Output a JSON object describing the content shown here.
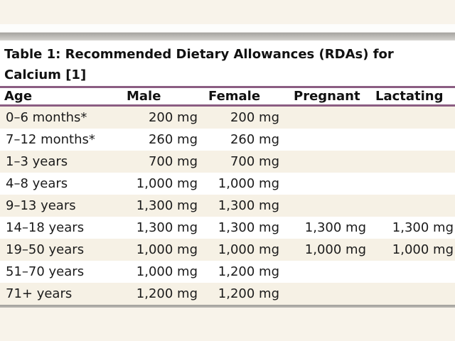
{
  "title": "Table 1: Recommended Dietary Allowances (RDAs) for Calcium [1]",
  "colors": {
    "accent_rule": "#8b5d82",
    "stripe_bg": "#f6f1e5",
    "page_margin_bg": "#f8f3ea",
    "divider_gray": "#a5a3a0"
  },
  "table": {
    "columns": {
      "age": "Age",
      "male": "Male",
      "female": "Female",
      "pregnant": "Pregnant",
      "lactating": "Lactating"
    },
    "rows": [
      {
        "age": "0–6 months*",
        "male": "200 mg",
        "female": "200 mg",
        "pregnant": "",
        "lactating": ""
      },
      {
        "age": "7–12 months*",
        "male": "260 mg",
        "female": "260 mg",
        "pregnant": "",
        "lactating": ""
      },
      {
        "age": "1–3 years",
        "male": "700 mg",
        "female": "700 mg",
        "pregnant": "",
        "lactating": ""
      },
      {
        "age": "4–8 years",
        "male": "1,000 mg",
        "female": "1,000 mg",
        "pregnant": "",
        "lactating": ""
      },
      {
        "age": "9–13 years",
        "male": "1,300 mg",
        "female": "1,300 mg",
        "pregnant": "",
        "lactating": ""
      },
      {
        "age": "14–18 years",
        "male": "1,300 mg",
        "female": "1,300 mg",
        "pregnant": "1,300 mg",
        "lactating": "1,300 mg"
      },
      {
        "age": "19–50 years",
        "male": "1,000 mg",
        "female": "1,000 mg",
        "pregnant": "1,000 mg",
        "lactating": "1,000 mg"
      },
      {
        "age": "51–70 years",
        "male": "1,000 mg",
        "female": "1,200 mg",
        "pregnant": "",
        "lactating": ""
      },
      {
        "age": "71+ years",
        "male": "1,200 mg",
        "female": "1,200 mg",
        "pregnant": "",
        "lactating": ""
      }
    ]
  }
}
